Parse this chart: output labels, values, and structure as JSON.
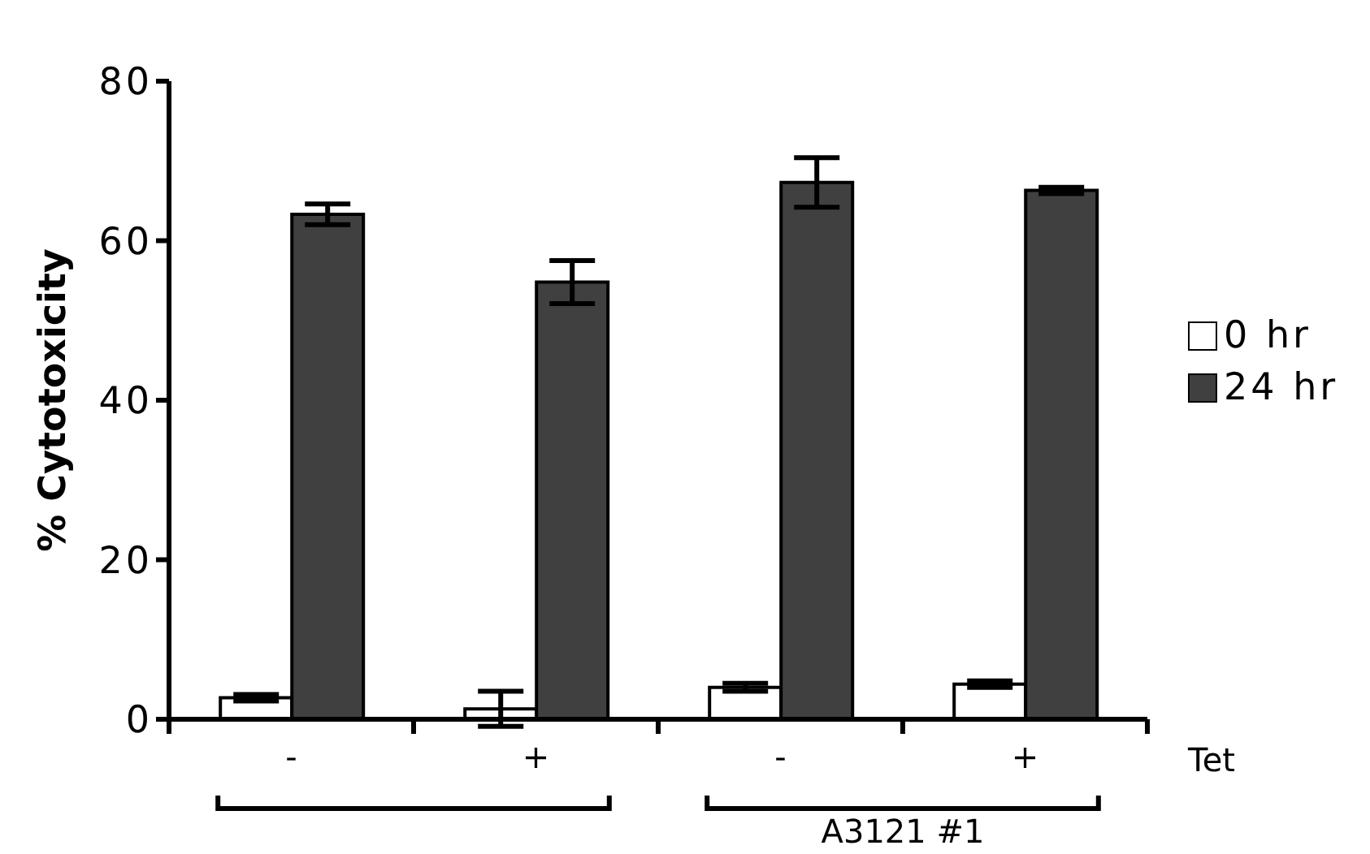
{
  "chart_data": {
    "type": "bar",
    "ylabel": "% Cytotoxicity",
    "categories": [
      "-",
      "+",
      "-",
      "+"
    ],
    "series": [
      {
        "name": "0 hr",
        "color": "#ffffff",
        "values": [
          2.7,
          1.3,
          4.0,
          4.4
        ],
        "errors": [
          0.4,
          2.2,
          0.5,
          0.4
        ]
      },
      {
        "name": "24 hr",
        "color": "#404040",
        "values": [
          63.3,
          54.8,
          67.3,
          66.3
        ],
        "errors": [
          1.3,
          2.7,
          3.1,
          0.4
        ]
      }
    ],
    "ylim": [
      0,
      80
    ],
    "yticks": [
      0,
      20,
      40,
      60,
      80
    ],
    "grid": false,
    "legend": "right",
    "annotations": [
      "Tet",
      "A3121 #1"
    ]
  }
}
